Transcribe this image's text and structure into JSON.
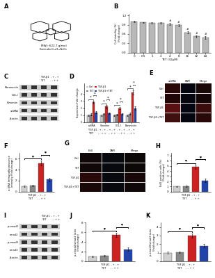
{
  "chart_data": [
    {
      "type": "structure",
      "title": "A",
      "annotations": [
        "MWt: 622.7 g/mol",
        "Formula:C₃₈H₄₂N₂O₆"
      ]
    },
    {
      "type": "bar",
      "title": "B",
      "categories": [
        "0",
        "0.5",
        "1",
        "2",
        "4",
        "8",
        "16",
        "32",
        "64"
      ],
      "values": [
        1.0,
        0.97,
        0.96,
        0.95,
        0.92,
        0.88,
        0.65,
        0.52,
        0.48
      ],
      "errors": [
        0.02,
        0.02,
        0.02,
        0.02,
        0.03,
        0.03,
        0.04,
        0.04,
        0.04
      ],
      "color": "#b8b8b8",
      "x_label": "TET (32μM)",
      "y_label": "Cell viability (%)\n(Fold change)",
      "ylim": [
        0,
        1.25
      ],
      "yticks": [
        0.0,
        0.3,
        0.6,
        0.9,
        1.2
      ],
      "significance": [
        {
          "at": 4,
          "label": "#"
        },
        {
          "at": 5,
          "label": "#"
        },
        {
          "at": 6,
          "label": "#"
        },
        {
          "at": 7,
          "label": "#"
        },
        {
          "at": 8,
          "label": "#"
        }
      ]
    },
    {
      "type": "blot",
      "title": "C",
      "categories": [
        "Fibronectin",
        "COL-I",
        "Vimentin",
        "α-SMA",
        "β-actin"
      ],
      "annotations": [
        "TGF-β1  - + - +",
        "TET       - - + +"
      ]
    },
    {
      "type": "bar",
      "title": "D",
      "categories": [
        "α-SMA",
        "Vimentin",
        "COL-I",
        "Fibronectin"
      ],
      "series": [
        {
          "name": "Ctrl",
          "color": "#d0d0d0",
          "values": [
            1.0,
            1.0,
            1.0,
            1.0
          ],
          "errors": [
            0.1,
            0.1,
            0.1,
            0.1
          ]
        },
        {
          "name": "TET",
          "color": "#888888",
          "values": [
            1.1,
            1.2,
            1.1,
            1.2
          ],
          "errors": [
            0.15,
            0.1,
            0.1,
            0.15
          ]
        },
        {
          "name": "TGF-β1",
          "color": "#cc2222",
          "values": [
            2.8,
            2.2,
            2.0,
            4.2
          ],
          "errors": [
            0.2,
            0.2,
            0.15,
            0.3
          ]
        },
        {
          "name": "TGF-β1+TET",
          "color": "#2244aa",
          "values": [
            1.4,
            1.3,
            1.2,
            2.0
          ],
          "errors": [
            0.15,
            0.1,
            0.1,
            0.2
          ]
        }
      ],
      "y_label": "Expression Fold change",
      "ylim": [
        0,
        5.5
      ],
      "yticks": [
        0,
        1,
        2,
        3,
        4
      ],
      "legend": "upper left",
      "significance": [
        {
          "from": 0,
          "to": 2,
          "label": "*"
        },
        {
          "from": 2,
          "to": 3,
          "label": "*"
        }
      ],
      "annotations": [
        "TGF-β1 - + - +  - + - +  - + - +  - + - +",
        "TET      - - + +  - - + +  - - + +  - - + +"
      ]
    },
    {
      "type": "image",
      "title": "E",
      "categories": [
        "α-SMA",
        "DAPI",
        "Merge"
      ],
      "series": [
        {
          "name": "Ctrl",
          "colors": [
            "#2a0808",
            "#060610",
            "#180808"
          ]
        },
        {
          "name": "TET",
          "colors": [
            "#200606",
            "#060610",
            "#140606"
          ]
        },
        {
          "name": "TGF-β1",
          "colors": [
            "#5a1010",
            "#060610",
            "#3a0c0c"
          ]
        },
        {
          "name": "TGF-β1+TET",
          "colors": [
            "#401010",
            "#060610",
            "#280808"
          ]
        }
      ]
    },
    {
      "type": "bar",
      "title": "F",
      "categories": [
        null,
        null,
        null,
        null
      ],
      "tick_labels": "y",
      "values": [
        1.0,
        1.1,
        5.2,
        2.2
      ],
      "errors": [
        0.15,
        0.15,
        0.45,
        0.35
      ],
      "colors": [
        "#d0d0d0",
        "#888888",
        "#cc2222",
        "#2244aa"
      ],
      "y_label": "α-SMA Immunofluorescence\nIntensity (Fold change)",
      "ylim": [
        0,
        7
      ],
      "yticks": [
        0,
        2,
        4,
        6
      ],
      "significance": [
        {
          "from": 0,
          "to": 2,
          "label": "*"
        },
        {
          "from": 2,
          "to": 3,
          "label": "*"
        }
      ],
      "annotations": [
        "TGF-β1  - + - +",
        "TET      - - + +"
      ]
    },
    {
      "type": "image",
      "title": "G",
      "categories": [
        "EdU",
        "DAPI",
        "Merge"
      ],
      "series": [
        {
          "name": "Ctrl",
          "colors": [
            "#100808",
            "#08080f",
            "#0c0808"
          ]
        },
        {
          "name": "TET",
          "colors": [
            "#100808",
            "#08080f",
            "#0c0808"
          ]
        },
        {
          "name": "TGF-β1",
          "colors": [
            "#280808",
            "#08080f",
            "#160808"
          ]
        },
        {
          "name": "TGF-β1+TET",
          "colors": [
            "#180808",
            "#08080f",
            "#100808"
          ]
        }
      ]
    },
    {
      "type": "bar",
      "title": "H",
      "categories": [
        null,
        null,
        null,
        null
      ],
      "tick_labels": "y",
      "values": [
        1.0,
        1.05,
        4.8,
        2.2
      ],
      "errors": [
        0.1,
        0.1,
        0.35,
        0.3
      ],
      "colors": [
        "#d0d0d0",
        "#888888",
        "#cc2222",
        "#2244aa"
      ],
      "y_label": "EdU positive cells (%)\n(Fold change)",
      "ylim": [
        0,
        7.5
      ],
      "yticks": [
        0,
        1,
        2,
        3,
        4,
        5,
        6,
        7
      ],
      "significance": [
        {
          "from": 0,
          "to": 2,
          "label": "*"
        },
        {
          "from": 2,
          "to": 3,
          "label": "*"
        }
      ],
      "annotations": [
        "TGF-β1  - + - +",
        "TET      - - + +"
      ]
    },
    {
      "type": "blot",
      "title": "I",
      "categories": [
        "p-smad2",
        "smad2",
        "p-smad3",
        "smad3",
        "β-actin"
      ],
      "annotations": [
        "TGF-β1  - + - +",
        "TET       - - + +"
      ]
    },
    {
      "type": "bar",
      "title": "J",
      "categories": [
        null,
        null,
        null,
        null
      ],
      "tick_labels": "y",
      "values": [
        1.0,
        1.1,
        5.5,
        2.5
      ],
      "errors": [
        0.15,
        0.15,
        0.4,
        0.4
      ],
      "colors": [
        "#d0d0d0",
        "#888888",
        "#cc2222",
        "#2244aa"
      ],
      "y_label": "p-smad2/smad2 ratio\n(Fold change)",
      "ylim": [
        0,
        8
      ],
      "yticks": [
        0,
        2,
        4,
        6,
        8
      ],
      "significance": [
        {
          "from": 0,
          "to": 2,
          "label": "*"
        },
        {
          "from": 2,
          "to": 3,
          "label": "*"
        }
      ],
      "annotations": [
        "TGF-β1  - + - +",
        "TET      - - + +"
      ]
    },
    {
      "type": "bar",
      "title": "K",
      "categories": [
        null,
        null,
        null,
        null
      ],
      "tick_labels": "y",
      "values": [
        1.0,
        1.05,
        3.0,
        1.8
      ],
      "errors": [
        0.1,
        0.1,
        0.25,
        0.2
      ],
      "colors": [
        "#d0d0d0",
        "#888888",
        "#cc2222",
        "#2244aa"
      ],
      "y_label": "p-smad3/smad3 ratio\n(Fold change)",
      "ylim": [
        0,
        4.5
      ],
      "yticks": [
        0,
        1,
        2,
        3,
        4
      ],
      "significance": [
        {
          "from": 0,
          "to": 2,
          "label": "*"
        },
        {
          "from": 2,
          "to": 3,
          "label": "*"
        }
      ],
      "annotations": [
        "TGF-β1  - + - +",
        "TET      - - + +"
      ]
    }
  ]
}
